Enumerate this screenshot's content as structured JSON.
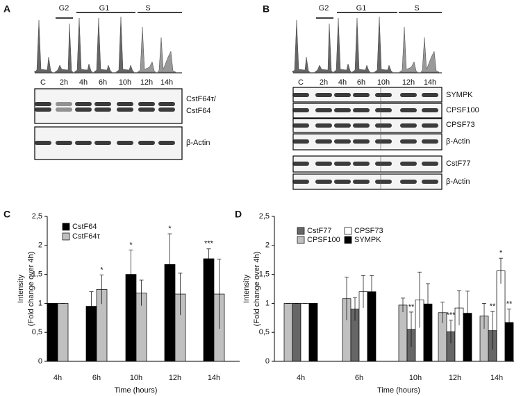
{
  "figure_panels": [
    {
      "label": "A",
      "phases": [
        "G2",
        "G1",
        "S"
      ],
      "lanes": [
        "C",
        "2h",
        "4h",
        "6h",
        "10h",
        "12h",
        "14h"
      ],
      "blot_labels": [
        "CstF64τ/",
        "CstF64",
        "β-Actin"
      ]
    },
    {
      "label": "B",
      "phases": [
        "G2",
        "G1",
        "S"
      ],
      "lanes": [
        "C",
        "2h",
        "4h",
        "6h",
        "10h",
        "12h",
        "14h"
      ],
      "blot_labels": [
        "SYMPK",
        "CPSF100",
        "CPSF73",
        "β-Actin",
        "CstF77",
        "β-Actin"
      ]
    }
  ],
  "chart_data": [
    {
      "type": "bar",
      "panel": "C",
      "ylabel": [
        "Intensity",
        "(Fold change over 4h)"
      ],
      "xlabel": "Time (hours)",
      "categories": [
        "4h",
        "6h",
        "10h",
        "12h",
        "14h"
      ],
      "ylim": [
        0,
        2.5
      ],
      "yticks": [
        0,
        {
          "value": 0.5,
          "label": "0,5"
        },
        1,
        {
          "value": 1.5,
          "label": "1,5"
        },
        2,
        {
          "value": 2.5,
          "label": "2,5"
        }
      ],
      "series": [
        {
          "name": "CstF64",
          "color": "#000000",
          "values": [
            1,
            0.95,
            1.5,
            1.67,
            1.77
          ],
          "errors": [
            0,
            0.25,
            0.42,
            0.53,
            0.17
          ],
          "annotations": [
            null,
            null,
            "*",
            "*",
            "***"
          ]
        },
        {
          "name": "CstF64τ",
          "color": "#c0c0c0",
          "values": [
            1,
            1.24,
            1.18,
            1.16,
            1.16
          ],
          "errors": [
            0,
            0.25,
            0.22,
            0.36,
            0.6
          ],
          "annotations": [
            null,
            "*",
            null,
            null,
            null
          ]
        }
      ]
    },
    {
      "type": "bar",
      "panel": "D",
      "ylabel": [
        "Intensity",
        "(Fold change over 4h)"
      ],
      "xlabel": "Time (hours)",
      "categories": [
        "4h",
        "6h",
        "10h",
        "12h",
        "14h"
      ],
      "ylim": [
        0,
        2.5
      ],
      "yticks": [
        0,
        {
          "value": 0.5,
          "label": "0,5"
        },
        1,
        {
          "value": 1.5,
          "label": "1,5"
        },
        2,
        {
          "value": 2.5,
          "label": "2,5"
        }
      ],
      "series": [
        {
          "name": "CPSF100",
          "color": "#c0c0c0",
          "values": [
            1,
            1.08,
            0.97,
            0.84,
            0.78
          ],
          "errors": [
            0,
            0.37,
            0.12,
            0.18,
            0.22
          ],
          "annotations": [
            null,
            null,
            null,
            null,
            null
          ]
        },
        {
          "name": "CstF77",
          "color": "#666666",
          "values": [
            1,
            0.9,
            0.55,
            0.51,
            0.53
          ],
          "errors": [
            0,
            0.2,
            0.3,
            0.2,
            0.33
          ],
          "annotations": [
            null,
            null,
            "**",
            "***",
            "**"
          ]
        },
        {
          "name": "CPSF73",
          "color": "#ffffff",
          "values": [
            1,
            1.2,
            1.06,
            0.92,
            1.56
          ],
          "errors": [
            0,
            0.28,
            0.48,
            0.3,
            0.22
          ],
          "annotations": [
            null,
            null,
            null,
            null,
            "*"
          ]
        },
        {
          "name": "SYMPK",
          "color": "#000000",
          "values": [
            1,
            1.2,
            0.99,
            0.83,
            0.67
          ],
          "errors": [
            0,
            0.28,
            0.35,
            0.38,
            0.23
          ],
          "annotations": [
            null,
            null,
            null,
            null,
            "**"
          ]
        }
      ]
    }
  ]
}
